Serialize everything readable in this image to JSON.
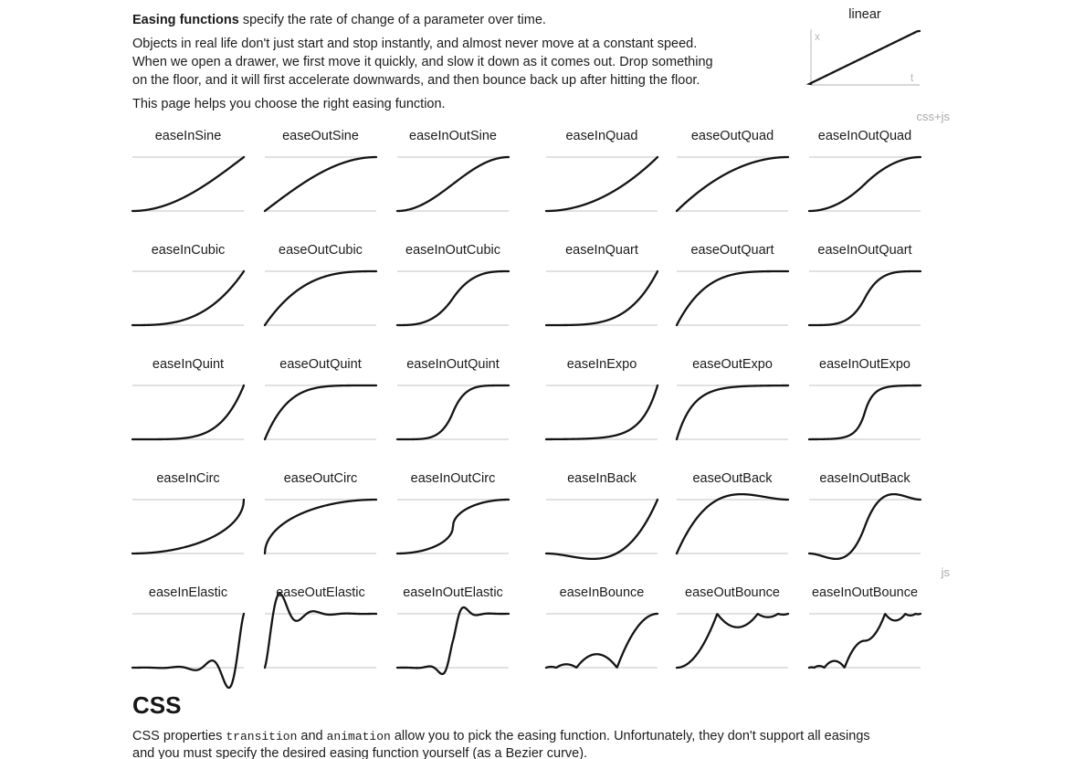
{
  "intro": {
    "lead_bold": "Easing functions",
    "lead_rest": " specify the rate of change of a parameter over time.",
    "body_lines": [
      "Objects in real life don't just start and stop instantly, and almost never move at a constant speed.",
      "When we open a drawer, we first move it quickly, and slow it down as it comes out. Drop something",
      "on the floor, and it will first accelerate downwards, and then bounce back up after hitting the floor."
    ],
    "help_line": "This page helps you choose the right easing function."
  },
  "linear_chart": {
    "title": "linear",
    "y_axis_label": "x",
    "x_axis_label": "t"
  },
  "group_labels": {
    "css_js": "css+js",
    "js": "js"
  },
  "grid": {
    "tiles": [
      "easeInSine",
      "easeOutSine",
      "easeInOutSine",
      "easeInQuad",
      "easeOutQuad",
      "easeInOutQuad",
      "easeInCubic",
      "easeOutCubic",
      "easeInOutCubic",
      "easeInQuart",
      "easeOutQuart",
      "easeInOutQuart",
      "easeInQuint",
      "easeOutQuint",
      "easeInOutQuint",
      "easeInExpo",
      "easeOutExpo",
      "easeInOutExpo",
      "easeInCirc",
      "easeOutCirc",
      "easeInOutCirc",
      "easeInBack",
      "easeOutBack",
      "easeInOutBack",
      "easeInElastic",
      "easeOutElastic",
      "easeInOutElastic",
      "easeInBounce",
      "easeOutBounce",
      "easeInOutBounce"
    ]
  },
  "css_section": {
    "heading": "CSS",
    "paragraph_parts": [
      {
        "t": "CSS properties "
      },
      {
        "t": "transition",
        "mono": true
      },
      {
        "t": " and "
      },
      {
        "t": "animation",
        "mono": true
      },
      {
        "t": " allow you to pick the easing function. Unfortunately, they don't support all easings"
      },
      {
        "br": true
      },
      {
        "t": "and you must specify the desired easing function yourself (as a Bezier curve)."
      }
    ]
  },
  "colors": {
    "text": "#1b1b1b",
    "curve": "#141414",
    "gridline": "#dddddd",
    "axis": "#cccccc",
    "muted_label": "#a9a9a9",
    "background": "#ffffff"
  },
  "chart_data": {
    "type": "line",
    "title": "Easing functions x = f(t)",
    "xlabel": "t",
    "ylabel": "x",
    "x_range": [
      0,
      1
    ],
    "y_range": [
      0,
      1
    ],
    "grid": "top and bottom baseline only",
    "sample_t": [
      0,
      0.1,
      0.2,
      0.3,
      0.4,
      0.5,
      0.6,
      0.7,
      0.8,
      0.9,
      1
    ],
    "series": [
      {
        "name": "linear",
        "values": [
          0,
          0.1,
          0.2,
          0.3,
          0.4,
          0.5,
          0.6,
          0.7,
          0.8,
          0.9,
          1
        ]
      },
      {
        "name": "easeInSine",
        "values": [
          0,
          0.012,
          0.049,
          0.109,
          0.191,
          0.293,
          0.412,
          0.546,
          0.691,
          0.844,
          1
        ]
      },
      {
        "name": "easeOutSine",
        "values": [
          0,
          0.156,
          0.309,
          0.454,
          0.588,
          0.707,
          0.809,
          0.891,
          0.951,
          0.988,
          1
        ]
      },
      {
        "name": "easeInOutSine",
        "values": [
          0,
          0.024,
          0.095,
          0.206,
          0.345,
          0.5,
          0.655,
          0.794,
          0.905,
          0.976,
          1
        ]
      },
      {
        "name": "easeInQuad",
        "values": [
          0,
          0.01,
          0.04,
          0.09,
          0.16,
          0.25,
          0.36,
          0.49,
          0.64,
          0.81,
          1
        ]
      },
      {
        "name": "easeOutQuad",
        "values": [
          0,
          0.19,
          0.36,
          0.51,
          0.64,
          0.75,
          0.84,
          0.91,
          0.96,
          0.99,
          1
        ]
      },
      {
        "name": "easeInOutQuad",
        "values": [
          0,
          0.02,
          0.08,
          0.18,
          0.32,
          0.5,
          0.68,
          0.82,
          0.92,
          0.98,
          1
        ]
      },
      {
        "name": "easeInCubic",
        "values": [
          0,
          0.001,
          0.008,
          0.027,
          0.064,
          0.125,
          0.216,
          0.343,
          0.512,
          0.729,
          1
        ]
      },
      {
        "name": "easeOutCubic",
        "values": [
          0,
          0.271,
          0.488,
          0.657,
          0.784,
          0.875,
          0.936,
          0.973,
          0.992,
          0.999,
          1
        ]
      },
      {
        "name": "easeInOutCubic",
        "values": [
          0,
          0.004,
          0.032,
          0.108,
          0.256,
          0.5,
          0.744,
          0.892,
          0.968,
          0.996,
          1
        ]
      },
      {
        "name": "easeInQuart",
        "values": [
          0,
          0,
          0.002,
          0.008,
          0.026,
          0.063,
          0.13,
          0.24,
          0.41,
          0.656,
          1
        ]
      },
      {
        "name": "easeOutQuart",
        "values": [
          0,
          0.344,
          0.59,
          0.76,
          0.87,
          0.938,
          0.974,
          0.992,
          0.998,
          1,
          1
        ]
      },
      {
        "name": "easeInOutQuart",
        "values": [
          0,
          0.001,
          0.013,
          0.065,
          0.205,
          0.5,
          0.795,
          0.935,
          0.987,
          0.999,
          1
        ]
      },
      {
        "name": "easeInQuint",
        "values": [
          0,
          0,
          0,
          0.002,
          0.01,
          0.031,
          0.078,
          0.168,
          0.328,
          0.59,
          1
        ]
      },
      {
        "name": "easeOutQuint",
        "values": [
          0,
          0.41,
          0.672,
          0.832,
          0.922,
          0.969,
          0.99,
          0.998,
          1,
          1,
          1
        ]
      },
      {
        "name": "easeInOutQuint",
        "values": [
          0,
          0,
          0.005,
          0.039,
          0.164,
          0.5,
          0.836,
          0.961,
          0.995,
          1,
          1
        ]
      },
      {
        "name": "easeInExpo",
        "values": [
          0,
          0.002,
          0.004,
          0.008,
          0.016,
          0.031,
          0.063,
          0.125,
          0.25,
          0.5,
          1
        ]
      },
      {
        "name": "easeOutExpo",
        "values": [
          0,
          0.5,
          0.75,
          0.875,
          0.938,
          0.969,
          0.984,
          0.992,
          0.996,
          0.998,
          1
        ]
      },
      {
        "name": "easeInOutExpo",
        "values": [
          0,
          0.002,
          0.008,
          0.031,
          0.125,
          0.5,
          0.875,
          0.969,
          0.992,
          0.998,
          1
        ]
      },
      {
        "name": "easeInCirc",
        "values": [
          0,
          0.005,
          0.02,
          0.046,
          0.083,
          0.134,
          0.2,
          0.286,
          0.4,
          0.564,
          1
        ]
      },
      {
        "name": "easeOutCirc",
        "values": [
          0,
          0.436,
          0.6,
          0.714,
          0.8,
          0.866,
          0.917,
          0.954,
          0.98,
          0.995,
          1
        ]
      },
      {
        "name": "easeInOutCirc",
        "values": [
          0,
          0.01,
          0.042,
          0.1,
          0.2,
          0.5,
          0.8,
          0.9,
          0.958,
          0.99,
          1
        ]
      },
      {
        "name": "easeInBack",
        "values": [
          0,
          -0.014,
          -0.046,
          -0.08,
          -0.099,
          -0.088,
          -0.029,
          0.093,
          0.294,
          0.591,
          1
        ]
      },
      {
        "name": "easeOutBack",
        "values": [
          0,
          0.409,
          0.706,
          0.907,
          1.029,
          1.088,
          1.099,
          1.08,
          1.046,
          1.014,
          1
        ]
      },
      {
        "name": "easeInOutBack",
        "values": [
          0,
          -0.038,
          -0.093,
          -0.079,
          0.09,
          0.5,
          0.91,
          1.079,
          1.093,
          1.038,
          1
        ]
      },
      {
        "name": "easeInElastic",
        "values": [
          0,
          0.002,
          -0.002,
          -0.004,
          0.016,
          -0.016,
          -0.031,
          0.125,
          -0.125,
          -0.25,
          1
        ]
      },
      {
        "name": "easeOutElastic",
        "values": [
          0,
          1.25,
          1.125,
          0.875,
          1.031,
          1.016,
          0.984,
          1.004,
          1.002,
          0.999,
          1
        ]
      },
      {
        "name": "easeInOutElastic",
        "values": [
          0,
          0,
          -0.004,
          0.024,
          -0.118,
          0.5,
          1.117,
          0.976,
          1.004,
          1,
          1
        ]
      },
      {
        "name": "easeInBounce",
        "values": [
          0,
          0.012,
          0.06,
          0.07,
          0.227,
          0.234,
          0.09,
          0.319,
          0.697,
          0.924,
          1
        ]
      },
      {
        "name": "easeOutBounce",
        "values": [
          0,
          0.076,
          0.303,
          0.681,
          0.91,
          0.766,
          0.773,
          0.93,
          0.94,
          0.988,
          1
        ]
      },
      {
        "name": "easeInOutBounce",
        "values": [
          0,
          0.03,
          0.114,
          0.045,
          0.349,
          0.5,
          0.651,
          0.955,
          0.886,
          0.97,
          1
        ]
      }
    ]
  }
}
